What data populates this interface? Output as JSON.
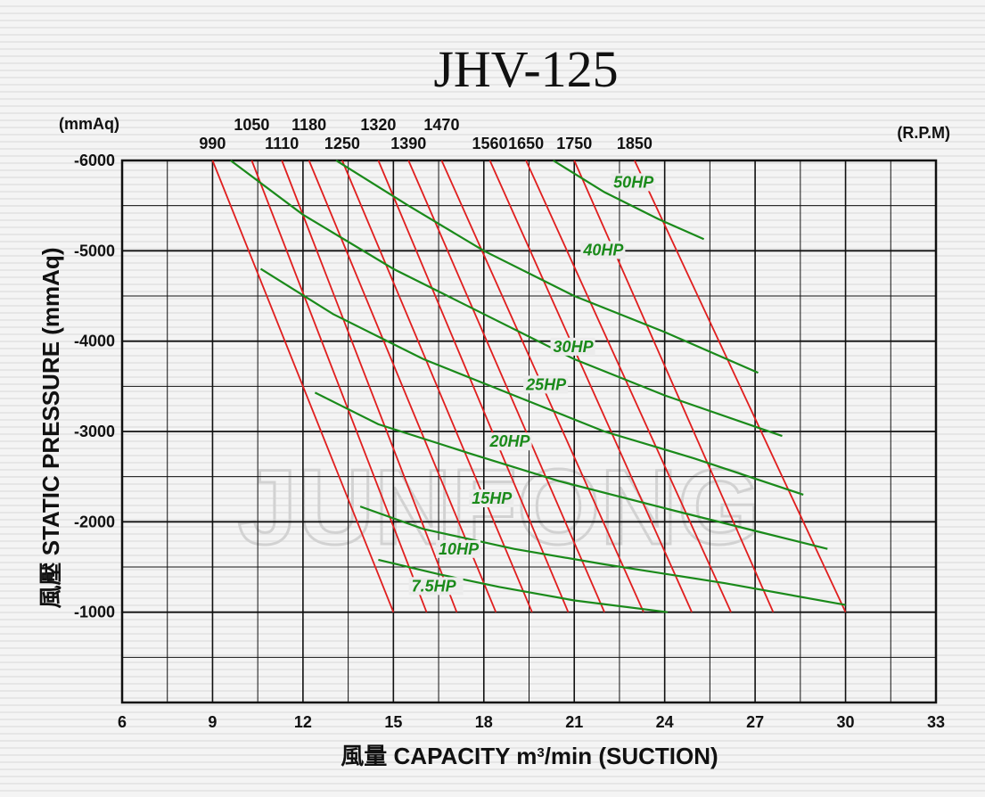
{
  "chart_data": {
    "type": "line",
    "title": "JHV-125",
    "watermark": "JUNFONG",
    "y_unit": "(mmAq)",
    "rpm_unit": "(R.P.M)",
    "ylabel": "風壓 STATIC PRESSURE (mmAq)",
    "xlabel_parts": [
      "風量 CAPACITY m",
      "3",
      "/min (SUCTION)"
    ],
    "xlim": [
      6,
      33
    ],
    "ylim": [
      0,
      -6000
    ],
    "x_ticks": [
      6,
      9,
      12,
      15,
      18,
      21,
      24,
      27,
      30,
      33
    ],
    "y_ticks": [
      -6000,
      -5000,
      -4000,
      -3000,
      -2000,
      -1000
    ],
    "colors": {
      "rpm": "#e01e1e",
      "hp": "#1a8a1a",
      "grid": "#111111"
    },
    "rpm_series": [
      {
        "name": "990",
        "points": [
          [
            9.0,
            -6000
          ],
          [
            15.0,
            -1000
          ]
        ]
      },
      {
        "name": "1050",
        "points": [
          [
            10.3,
            -6000
          ],
          [
            16.1,
            -1000
          ]
        ]
      },
      {
        "name": "1110",
        "points": [
          [
            11.3,
            -6000
          ],
          [
            17.1,
            -1000
          ]
        ]
      },
      {
        "name": "1180",
        "points": [
          [
            12.2,
            -6000
          ],
          [
            18.4,
            -1000
          ]
        ]
      },
      {
        "name": "1250",
        "points": [
          [
            13.3,
            -6000
          ],
          [
            19.6,
            -1000
          ]
        ]
      },
      {
        "name": "1320",
        "points": [
          [
            14.5,
            -6000
          ],
          [
            20.8,
            -1000
          ]
        ]
      },
      {
        "name": "1390",
        "points": [
          [
            15.5,
            -6000
          ],
          [
            22.0,
            -1000
          ]
        ]
      },
      {
        "name": "1470",
        "points": [
          [
            16.6,
            -6000
          ],
          [
            23.3,
            -1000
          ]
        ]
      },
      {
        "name": "1560",
        "points": [
          [
            18.2,
            -6000
          ],
          [
            24.9,
            -1000
          ]
        ]
      },
      {
        "name": "1650",
        "points": [
          [
            19.4,
            -6000
          ],
          [
            26.2,
            -1000
          ]
        ]
      },
      {
        "name": "1750",
        "points": [
          [
            21.0,
            -6000
          ],
          [
            27.6,
            -1000
          ]
        ]
      },
      {
        "name": "1850",
        "points": [
          [
            23.0,
            -6000
          ],
          [
            30.0,
            -1000
          ]
        ]
      }
    ],
    "rpm_label_rows": {
      "top": [
        "1050",
        "1180",
        "1320",
        "1470"
      ],
      "bottom": [
        "990",
        "1110",
        "1250",
        "1390",
        "1560",
        "1650",
        "1750",
        "1850"
      ]
    },
    "hp_series": [
      {
        "name": "7.5HP",
        "label_at": [
          15.6,
          -1230
        ],
        "points": [
          [
            14.5,
            -1580
          ],
          [
            16.5,
            -1420
          ],
          [
            18.5,
            -1280
          ],
          [
            21.0,
            -1130
          ],
          [
            24.1,
            -1000
          ]
        ]
      },
      {
        "name": "10HP",
        "label_at": [
          16.5,
          -1640
        ],
        "points": [
          [
            13.9,
            -2170
          ],
          [
            16.0,
            -1920
          ],
          [
            19.0,
            -1700
          ],
          [
            22.0,
            -1530
          ],
          [
            26.0,
            -1320
          ],
          [
            30.0,
            -1080
          ]
        ]
      },
      {
        "name": "15HP",
        "label_at": [
          17.6,
          -2200
        ],
        "points": [
          [
            12.4,
            -3430
          ],
          [
            14.5,
            -3080
          ],
          [
            17.5,
            -2760
          ],
          [
            20.5,
            -2450
          ],
          [
            24.0,
            -2150
          ],
          [
            27.0,
            -1900
          ],
          [
            29.4,
            -1700
          ]
        ]
      },
      {
        "name": "20HP",
        "label_at": [
          18.2,
          -2830
        ],
        "points": [
          [
            10.6,
            -4800
          ],
          [
            13.0,
            -4300
          ],
          [
            16.0,
            -3800
          ],
          [
            19.0,
            -3400
          ],
          [
            22.0,
            -3000
          ],
          [
            25.0,
            -2700
          ],
          [
            28.6,
            -2300
          ]
        ]
      },
      {
        "name": "25HP",
        "label_at": [
          19.4,
          -3460
        ],
        "points": [
          [
            9.6,
            -6000
          ],
          [
            12.0,
            -5400
          ],
          [
            15.0,
            -4800
          ],
          [
            18.0,
            -4300
          ],
          [
            21.0,
            -3800
          ],
          [
            24.0,
            -3400
          ],
          [
            27.9,
            -2950
          ]
        ]
      },
      {
        "name": "30HP",
        "label_at": [
          20.3,
          -3880
        ],
        "points": [
          [
            13.1,
            -6000
          ],
          [
            15.5,
            -5500
          ],
          [
            18.0,
            -5000
          ],
          [
            21.0,
            -4500
          ],
          [
            24.0,
            -4100
          ],
          [
            27.1,
            -3650
          ]
        ]
      },
      {
        "name": "40HP",
        "label_at": [
          21.3,
          -4950
        ],
        "points": [
          [
            20.3,
            -6000
          ],
          [
            22.0,
            -5650
          ],
          [
            23.8,
            -5350
          ],
          [
            25.3,
            -5130
          ]
        ]
      },
      {
        "name": "50HP",
        "label_at": [
          22.3,
          -5700
        ],
        "points": []
      }
    ]
  }
}
